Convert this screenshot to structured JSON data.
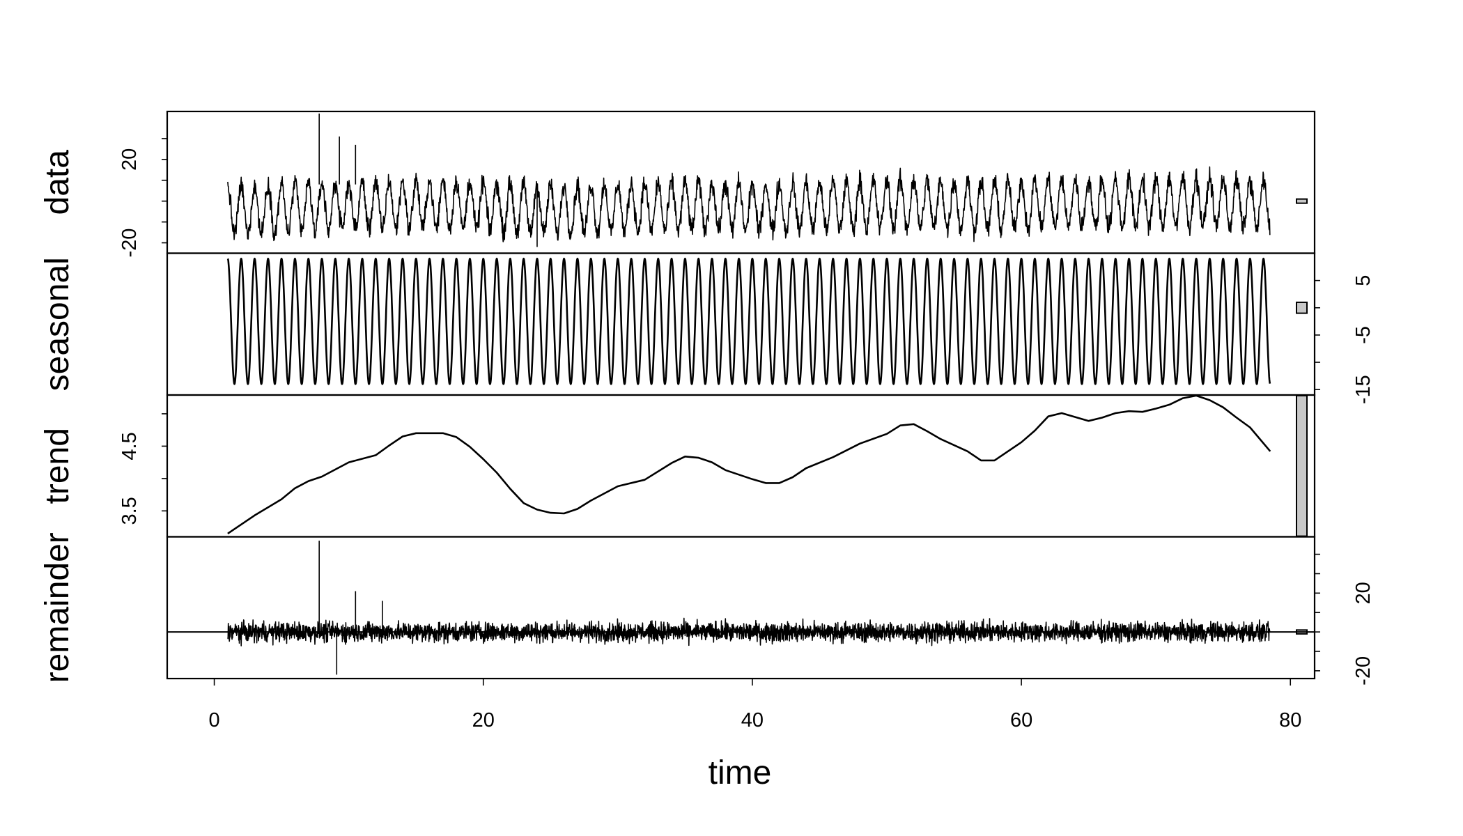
{
  "chart_data": {
    "type": "line",
    "title": "",
    "xlabel": "time",
    "xlim": [
      -3.5,
      81.8
    ],
    "x_ticks": [
      0,
      20,
      40,
      60,
      80
    ],
    "x_tick_labels": [
      "0",
      "20",
      "40",
      "60",
      "80"
    ],
    "time_range": [
      1,
      78.5
    ],
    "scale_bar_color": "#c8c8c8",
    "panels": [
      {
        "name": "data",
        "label": "data",
        "axis_side": "left",
        "ylim": [
          -25,
          43
        ],
        "tick_values": [
          -20,
          20
        ],
        "tick_labels": [
          "-20",
          "20"
        ],
        "minor_ticks": [
          -30,
          -10,
          0,
          10,
          30
        ],
        "approx_range": [
          -23,
          42
        ],
        "spikes": [
          {
            "x": 7.8,
            "y": 42
          },
          {
            "x": 9.3,
            "y": 31
          },
          {
            "x": 10.5,
            "y": 27
          },
          {
            "x": 24,
            "y": -22
          }
        ],
        "scale_bar_range": [
          -1,
          1
        ]
      },
      {
        "name": "seasonal",
        "label": "seasonal",
        "axis_side": "right",
        "ylim": [
          -16,
          10
        ],
        "tick_values": [
          -15,
          -5,
          5
        ],
        "tick_labels": [
          "-15",
          "-5",
          "5"
        ],
        "minor_ticks": [
          -10,
          0
        ],
        "period": 1,
        "approx_range": [
          -14,
          9
        ],
        "scale_bar_range": [
          -1,
          1
        ]
      },
      {
        "name": "trend",
        "label": "trend",
        "axis_side": "left",
        "ylim": [
          3.1,
          5.29
        ],
        "tick_values": [
          3.5,
          4.5
        ],
        "tick_labels": [
          "3.5",
          "4.5"
        ],
        "minor_ticks": [
          4.0,
          5.0
        ],
        "points": {
          "x": [
            1,
            3,
            5,
            6,
            7,
            8,
            10,
            12,
            13,
            14,
            15,
            17,
            18,
            19,
            20,
            21,
            22,
            23,
            24,
            25,
            26,
            27,
            28,
            30,
            32,
            34,
            35,
            36,
            37,
            38,
            40,
            41,
            42,
            43,
            44,
            46,
            48,
            50,
            51,
            52,
            53,
            54,
            56,
            57,
            58,
            60,
            61,
            62,
            63,
            65,
            66,
            67,
            68,
            69,
            70,
            71,
            72,
            73,
            74,
            75,
            76,
            77,
            78.5
          ],
          "y": [
            3.15,
            3.43,
            3.68,
            3.85,
            3.96,
            4.03,
            4.25,
            4.36,
            4.51,
            4.65,
            4.7,
            4.7,
            4.64,
            4.49,
            4.3,
            4.09,
            3.84,
            3.62,
            3.52,
            3.47,
            3.46,
            3.53,
            3.66,
            3.88,
            3.98,
            4.24,
            4.34,
            4.32,
            4.25,
            4.13,
            3.99,
            3.93,
            3.93,
            4.02,
            4.16,
            4.33,
            4.54,
            4.69,
            4.82,
            4.84,
            4.73,
            4.61,
            4.42,
            4.28,
            4.28,
            4.56,
            4.74,
            4.96,
            5.01,
            4.89,
            4.94,
            5.01,
            5.04,
            5.03,
            5.08,
            5.14,
            5.24,
            5.28,
            5.21,
            5.1,
            4.94,
            4.79,
            4.42
          ]
        },
        "scale_bar_range": [
          3.11,
          5.28
        ]
      },
      {
        "name": "remainder",
        "label": "remainder",
        "axis_side": "right",
        "ylim": [
          -24,
          49
        ],
        "tick_values": [
          -20,
          20
        ],
        "tick_labels": [
          "-20",
          "20"
        ],
        "minor_ticks": [
          -10,
          0,
          10,
          30,
          40
        ],
        "zero_line": true,
        "approx_range": [
          -22,
          47
        ],
        "spikes": [
          {
            "x": 7.8,
            "y": 47
          },
          {
            "x": 9.1,
            "y": -22
          },
          {
            "x": 10.5,
            "y": 21
          },
          {
            "x": 12.5,
            "y": 16
          }
        ],
        "scale_bar_range": [
          -1,
          1
        ]
      }
    ]
  }
}
